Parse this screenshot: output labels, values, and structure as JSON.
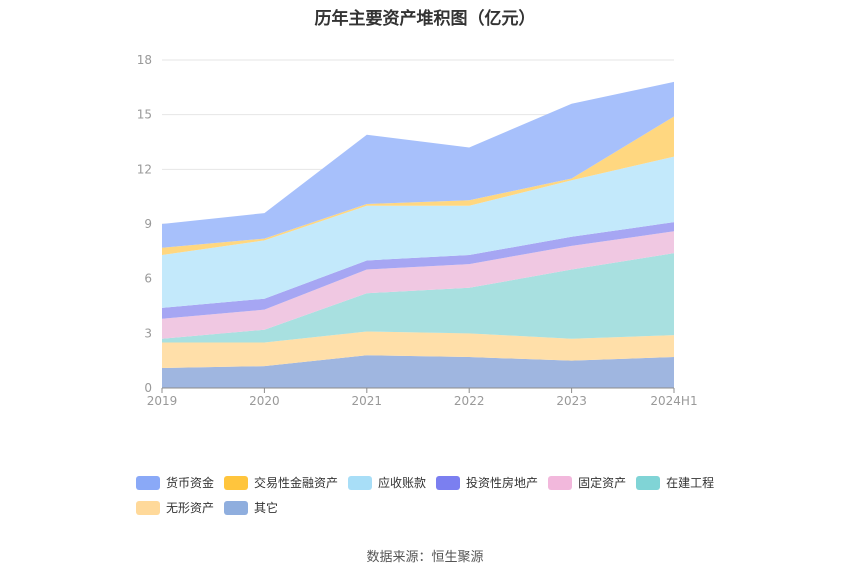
{
  "chart_data": {
    "type": "area",
    "stacked": true,
    "title": "历年主要资产堆积图（亿元）",
    "categories": [
      "2019",
      "2020",
      "2021",
      "2022",
      "2023",
      "2024H1"
    ],
    "ylim": [
      0,
      18
    ],
    "yticks": [
      0,
      3,
      6,
      9,
      12,
      15,
      18
    ],
    "grid": true,
    "legend_position": "bottom",
    "series": [
      {
        "name": "其它",
        "color": "#9fb6e0",
        "values": [
          1.1,
          1.2,
          1.8,
          1.7,
          1.5,
          1.7
        ]
      },
      {
        "name": "无形资产",
        "color": "#ffdfa9",
        "values": [
          1.4,
          1.3,
          1.3,
          1.3,
          1.2,
          1.2
        ]
      },
      {
        "name": "在建工程",
        "color": "#a8e0e0",
        "values": [
          0.2,
          0.7,
          2.1,
          2.5,
          3.8,
          4.5
        ]
      },
      {
        "name": "固定资产",
        "color": "#f0c8e2",
        "values": [
          1.1,
          1.1,
          1.3,
          1.3,
          1.3,
          1.2
        ]
      },
      {
        "name": "投资性房地产",
        "color": "#a6a6f3",
        "values": [
          0.6,
          0.6,
          0.5,
          0.5,
          0.5,
          0.5
        ]
      },
      {
        "name": "应收账款",
        "color": "#c3e9fb",
        "values": [
          2.9,
          3.2,
          3.0,
          2.7,
          3.1,
          3.6
        ]
      },
      {
        "name": "交易性金融资产",
        "color": "#ffd780",
        "values": [
          0.4,
          0.1,
          0.1,
          0.3,
          0.1,
          2.2
        ]
      },
      {
        "name": "货币资金",
        "color": "#a7c0fb",
        "values": [
          1.3,
          1.4,
          3.8,
          2.9,
          4.1,
          1.9
        ]
      }
    ]
  },
  "legend": {
    "rows": [
      [
        {
          "name": "货币资金",
          "color": "#8aa9f7"
        },
        {
          "name": "交易性金融资产",
          "color": "#ffc53d"
        },
        {
          "name": "应收账款",
          "color": "#a8def7"
        },
        {
          "name": "投资性房地产",
          "color": "#7b7ff0"
        },
        {
          "name": "固定资产",
          "color": "#f2b8dc"
        },
        {
          "name": "在建工程",
          "color": "#80d4d6"
        }
      ],
      [
        {
          "name": "无形资产",
          "color": "#ffd99a"
        },
        {
          "name": "其它",
          "color": "#8faede"
        }
      ]
    ]
  },
  "source": "数据来源：恒生聚源"
}
